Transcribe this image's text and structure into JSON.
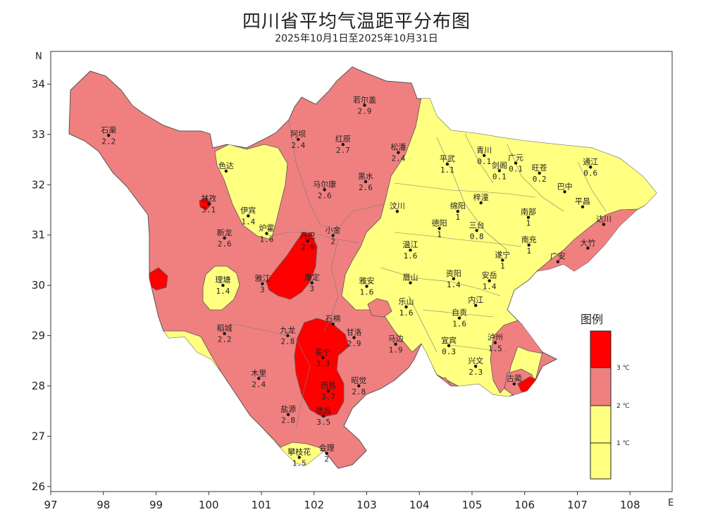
{
  "header": {
    "title": "四川省平均气温距平分布图",
    "subtitle": "2025年10月1日至2025年10月31日"
  },
  "axes": {
    "x_letter": "E",
    "y_letter": "N",
    "x_range": [
      97,
      108.8
    ],
    "y_range": [
      25.9,
      34.65
    ],
    "x_ticks": [
      "97",
      "98",
      "99",
      "100",
      "101",
      "102",
      "103",
      "104",
      "105",
      "106",
      "107",
      "108"
    ],
    "y_ticks": [
      "26",
      "27",
      "28",
      "29",
      "30",
      "31",
      "32",
      "33",
      "34"
    ]
  },
  "colors": {
    "band_low": "#ffff80",
    "band_mid": "#f08080",
    "band_high": "#ff0000",
    "border": "#707070"
  },
  "legend": {
    "title": "图例",
    "labels": [
      "3 ℃",
      "2 ℃",
      "1 ℃"
    ]
  },
  "stations": [
    {
      "name": "若尔盖",
      "value": "2.9",
      "lon": 102.96,
      "lat": 33.58
    },
    {
      "name": "石渠",
      "value": "2.2",
      "lon": 98.1,
      "lat": 32.98
    },
    {
      "name": "阿坝",
      "value": "2.4",
      "lon": 101.7,
      "lat": 32.9
    },
    {
      "name": "红原",
      "value": "2.7",
      "lon": 102.55,
      "lat": 32.8
    },
    {
      "name": "松潘",
      "value": "2.4",
      "lon": 103.6,
      "lat": 32.64
    },
    {
      "name": "平武",
      "value": "1.1",
      "lon": 104.53,
      "lat": 32.41
    },
    {
      "name": "广元",
      "value": "0.1",
      "lon": 105.83,
      "lat": 32.43
    },
    {
      "name": "旺苍",
      "value": "0.2",
      "lon": 106.28,
      "lat": 32.23
    },
    {
      "name": "通江",
      "value": "0.6",
      "lon": 107.25,
      "lat": 32.35
    },
    {
      "name": "青川",
      "value": "0.1",
      "lon": 105.23,
      "lat": 32.58
    },
    {
      "name": "马尔康",
      "value": "2.6",
      "lon": 102.2,
      "lat": 31.9
    },
    {
      "name": "黑水",
      "value": "2.6",
      "lon": 102.98,
      "lat": 32.06
    },
    {
      "name": "剑阁",
      "value": "0.1",
      "lon": 105.52,
      "lat": 32.28
    },
    {
      "name": "巴中",
      "value": "",
      "lon": 106.76,
      "lat": 31.86
    },
    {
      "name": "甘孜",
      "value": "3.1",
      "lon": 100.0,
      "lat": 31.62
    },
    {
      "name": "色达",
      "value": "",
      "lon": 100.33,
      "lat": 32.27
    },
    {
      "name": "伊宾",
      "value": "1.4",
      "lon": 100.75,
      "lat": 31.38
    },
    {
      "name": "炉霍",
      "value": "1.6",
      "lon": 101.1,
      "lat": 31.03
    },
    {
      "name": "新龙",
      "value": "2.6",
      "lon": 100.3,
      "lat": 30.94
    },
    {
      "name": "丹巴",
      "value": "2.9",
      "lon": 101.88,
      "lat": 30.88
    },
    {
      "name": "小金",
      "value": "2",
      "lon": 102.36,
      "lat": 30.99
    },
    {
      "name": "汶川",
      "value": "",
      "lon": 103.58,
      "lat": 31.47
    },
    {
      "name": "绵阳",
      "value": "1",
      "lon": 104.73,
      "lat": 31.47
    },
    {
      "name": "梓潼",
      "value": "",
      "lon": 105.17,
      "lat": 31.64
    },
    {
      "name": "南部",
      "value": "1",
      "lon": 106.07,
      "lat": 31.35
    },
    {
      "name": "平昌",
      "value": "",
      "lon": 107.1,
      "lat": 31.56
    },
    {
      "name": "达川",
      "value": "",
      "lon": 107.5,
      "lat": 31.21
    },
    {
      "name": "三台",
      "value": "0.8",
      "lon": 105.09,
      "lat": 31.09
    },
    {
      "name": "德阳",
      "value": "1",
      "lon": 104.38,
      "lat": 31.13
    },
    {
      "name": "南充",
      "value": "1",
      "lon": 106.08,
      "lat": 30.8
    },
    {
      "name": "温江",
      "value": "1.6",
      "lon": 103.83,
      "lat": 30.7
    },
    {
      "name": "大竹",
      "value": "",
      "lon": 107.2,
      "lat": 30.74
    },
    {
      "name": "遂宁",
      "value": "1",
      "lon": 105.58,
      "lat": 30.5
    },
    {
      "name": "广安",
      "value": "",
      "lon": 106.63,
      "lat": 30.47
    },
    {
      "name": "康定",
      "value": "3",
      "lon": 101.96,
      "lat": 30.05
    },
    {
      "name": "雅江",
      "value": "3",
      "lon": 101.02,
      "lat": 30.03
    },
    {
      "name": "理塘",
      "value": "1.4",
      "lon": 100.27,
      "lat": 30.0
    },
    {
      "name": "雅安",
      "value": "1.6",
      "lon": 103.0,
      "lat": 29.98
    },
    {
      "name": "眉山",
      "value": "",
      "lon": 103.83,
      "lat": 30.05
    },
    {
      "name": "资阳",
      "value": "1.4",
      "lon": 104.65,
      "lat": 30.13
    },
    {
      "name": "安岳",
      "value": "1.4",
      "lon": 105.33,
      "lat": 30.09
    },
    {
      "name": "内江",
      "value": "",
      "lon": 105.07,
      "lat": 29.6
    },
    {
      "name": "乐山",
      "value": "1.6",
      "lon": 103.75,
      "lat": 29.57
    },
    {
      "name": "自贡",
      "value": "1.6",
      "lon": 104.76,
      "lat": 29.35
    },
    {
      "name": "稻城",
      "value": "2.2",
      "lon": 100.3,
      "lat": 29.04
    },
    {
      "name": "九龙",
      "value": "2.8",
      "lon": 101.5,
      "lat": 29.0
    },
    {
      "name": "石棉",
      "value": "",
      "lon": 102.36,
      "lat": 29.23
    },
    {
      "name": "甘洛",
      "value": "2.9",
      "lon": 102.76,
      "lat": 28.96
    },
    {
      "name": "马边",
      "value": "1.9",
      "lon": 103.55,
      "lat": 28.83
    },
    {
      "name": "宜宾",
      "value": "0.3",
      "lon": 104.56,
      "lat": 28.8
    },
    {
      "name": "泸州",
      "value": "1.5",
      "lon": 105.44,
      "lat": 28.86
    },
    {
      "name": "冕宁",
      "value": "3.3",
      "lon": 102.17,
      "lat": 28.56
    },
    {
      "name": "木里",
      "value": "2.4",
      "lon": 100.95,
      "lat": 28.15
    },
    {
      "name": "昭觉",
      "value": "2.8",
      "lon": 102.85,
      "lat": 28.0
    },
    {
      "name": "兴文",
      "value": "2.3",
      "lon": 105.07,
      "lat": 28.39
    },
    {
      "name": "古蔺",
      "value": "",
      "lon": 105.8,
      "lat": 28.04
    },
    {
      "name": "西昌",
      "value": "3.7",
      "lon": 102.27,
      "lat": 27.9
    },
    {
      "name": "盐源",
      "value": "2.8",
      "lon": 101.51,
      "lat": 27.43
    },
    {
      "name": "德昌",
      "value": "3.5",
      "lon": 102.18,
      "lat": 27.4
    },
    {
      "name": "会理",
      "value": "2",
      "lon": 102.24,
      "lat": 26.66
    },
    {
      "name": "攀枝花",
      "value": "1.5",
      "lon": 101.72,
      "lat": 26.58
    }
  ]
}
